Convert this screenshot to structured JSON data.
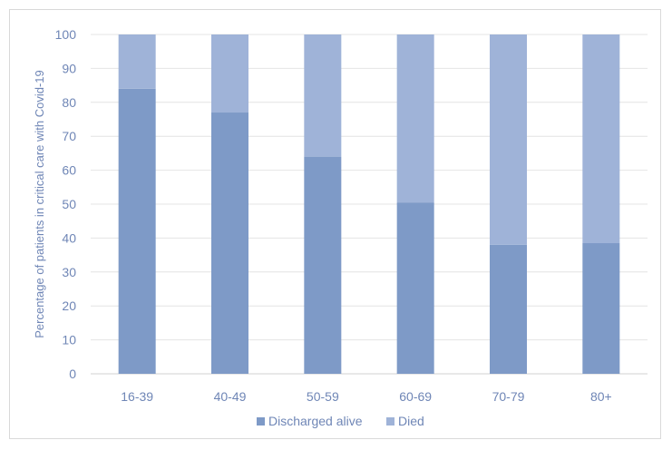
{
  "chart_data": {
    "type": "bar",
    "stacked": true,
    "categories": [
      "16-39",
      "40-49",
      "50-59",
      "60-69",
      "70-79",
      "80+"
    ],
    "series": [
      {
        "name": "Discharged alive",
        "values": [
          84,
          77,
          64,
          50.5,
          38,
          38.5
        ],
        "color": "#7e9ac7"
      },
      {
        "name": "Died",
        "values": [
          16,
          23,
          36,
          49.5,
          62,
          61.5
        ],
        "color": "#9fb3d8"
      }
    ],
    "title": "",
    "xlabel": "",
    "ylabel": "Percentage of patients in critical care with Covid-19",
    "ylim": [
      0,
      100
    ],
    "yticks": [
      0,
      10,
      20,
      30,
      40,
      50,
      60,
      70,
      80,
      90,
      100
    ],
    "grid": true,
    "legend_position": "bottom"
  }
}
